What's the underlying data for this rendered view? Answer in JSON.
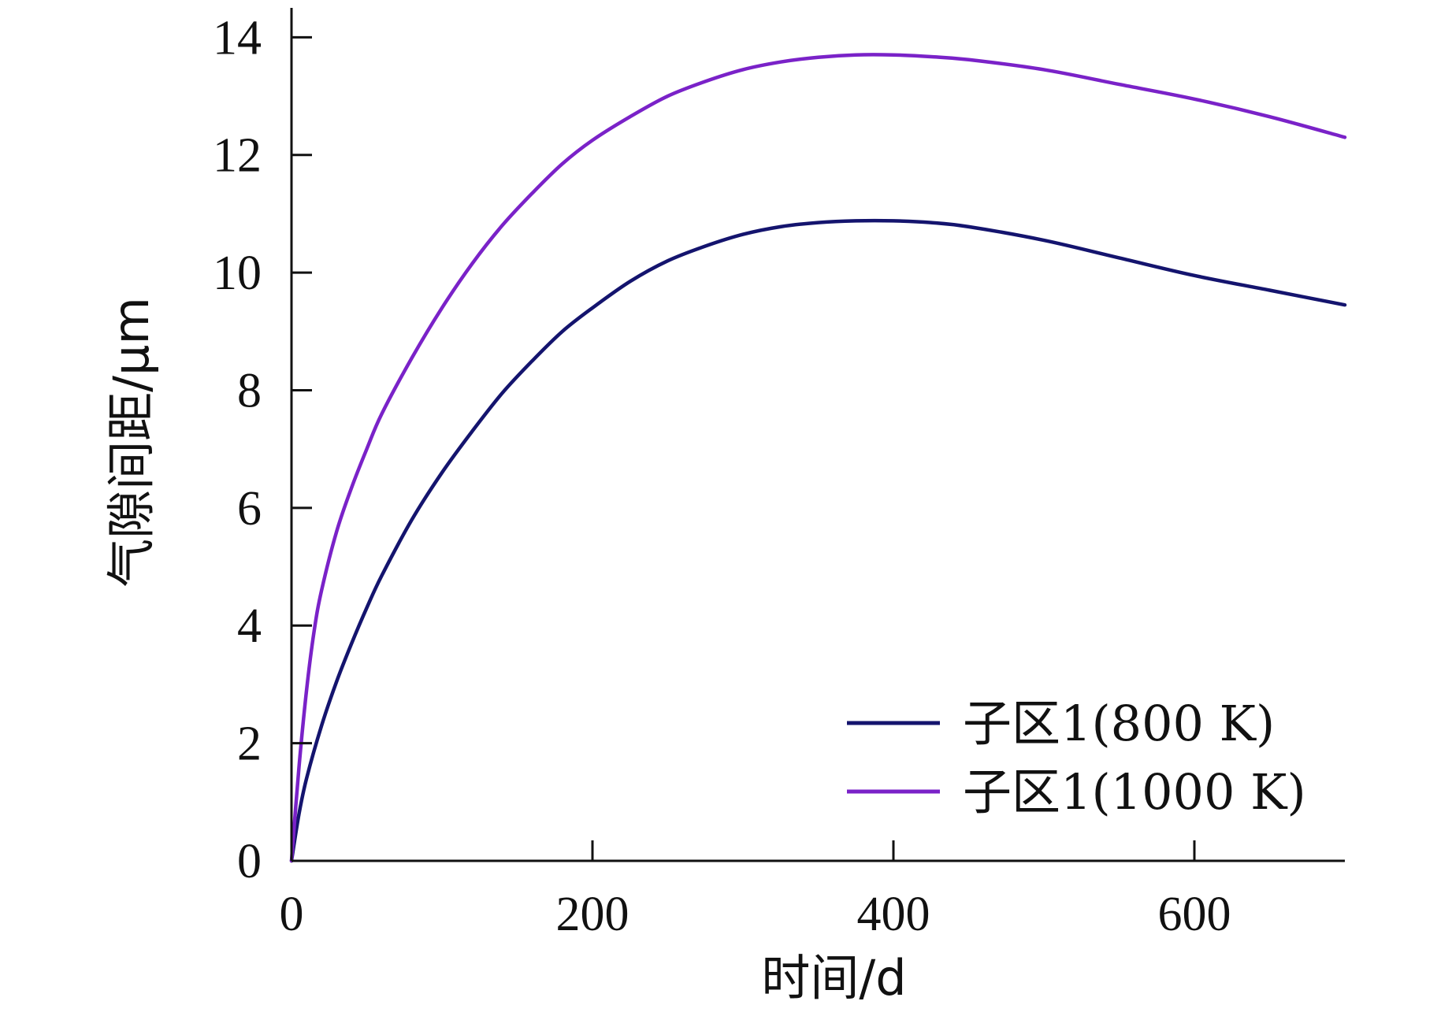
{
  "chart_data": {
    "type": "line",
    "title": "",
    "xlabel": "时间/d",
    "ylabel": "气隙间距/μm",
    "xlim": [
      0,
      700
    ],
    "ylim": [
      0,
      14.5
    ],
    "xticks": [
      0,
      200,
      400,
      600
    ],
    "yticks": [
      0,
      2,
      4,
      6,
      8,
      10,
      12,
      14
    ],
    "grid": false,
    "legend_position": "bottom-right",
    "series": [
      {
        "name": "子区1(800 K)",
        "color": "#14146e",
        "x": [
          0,
          5,
          10,
          20,
          30,
          40,
          50,
          60,
          80,
          100,
          120,
          140,
          160,
          180,
          200,
          225,
          250,
          275,
          300,
          325,
          350,
          375,
          400,
          425,
          450,
          500,
          550,
          600,
          650,
          700
        ],
        "y": [
          0,
          0.8,
          1.4,
          2.3,
          3.05,
          3.7,
          4.3,
          4.85,
          5.8,
          6.6,
          7.3,
          7.95,
          8.5,
          9.0,
          9.4,
          9.85,
          10.2,
          10.45,
          10.65,
          10.78,
          10.85,
          10.88,
          10.88,
          10.85,
          10.78,
          10.55,
          10.25,
          9.95,
          9.7,
          9.45
        ]
      },
      {
        "name": "子区1(1000 K)",
        "color": "#7a22c8",
        "x": [
          0,
          5,
          10,
          15,
          20,
          30,
          40,
          50,
          60,
          80,
          100,
          120,
          140,
          160,
          180,
          200,
          225,
          250,
          275,
          300,
          325,
          350,
          375,
          400,
          425,
          450,
          500,
          550,
          600,
          650,
          700
        ],
        "y": [
          0,
          1.6,
          2.9,
          3.9,
          4.6,
          5.6,
          6.35,
          7.0,
          7.6,
          8.55,
          9.4,
          10.15,
          10.8,
          11.35,
          11.85,
          12.25,
          12.65,
          13.0,
          13.25,
          13.45,
          13.58,
          13.66,
          13.7,
          13.7,
          13.67,
          13.62,
          13.45,
          13.2,
          12.95,
          12.65,
          12.3
        ]
      }
    ]
  }
}
